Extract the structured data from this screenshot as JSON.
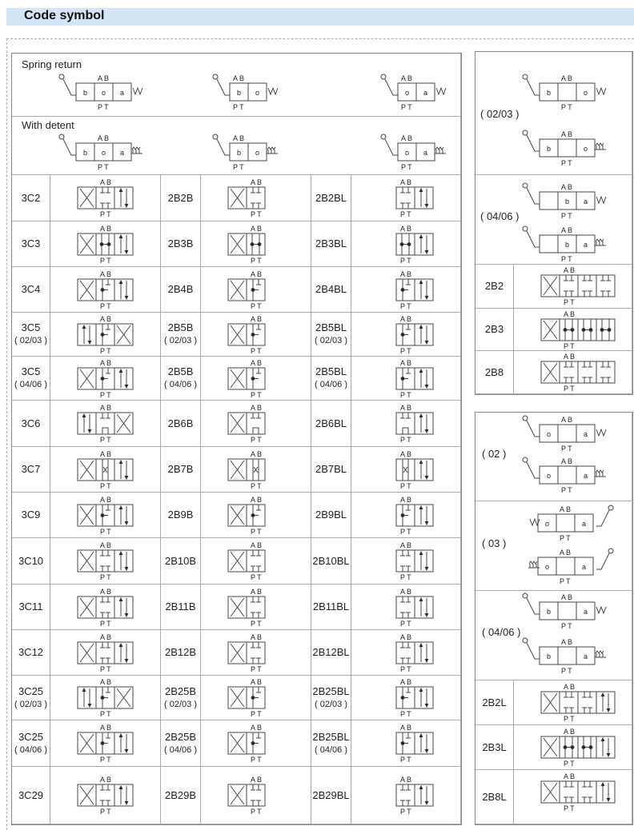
{
  "header": {
    "title": "Code symbol"
  },
  "ports": {
    "top": "A B",
    "bottom": "P T"
  },
  "positions": {
    "b": "b",
    "o": "o",
    "a": "a"
  },
  "operator": {
    "spring_return": "Spring return",
    "with_detent": "With detent"
  },
  "rows": [
    {
      "c1": "3C2",
      "c2": "2B2B",
      "c3": "2B2BL",
      "center": "blk"
    },
    {
      "c1": "3C3",
      "c2": "2B3B",
      "c3": "2B3BL",
      "center": "dot"
    },
    {
      "c1": "3C4",
      "c2": "2B4B",
      "c3": "2B4BL",
      "center": "half"
    },
    {
      "c1": "3C5",
      "c2": "2B5B",
      "c3": "2B5BL",
      "sub": "( 02/03 )",
      "center": "half",
      "rev": true
    },
    {
      "c1": "3C5",
      "c2": "2B5B",
      "c3": "2B5BL",
      "sub": "( 04/06 )",
      "center": "half"
    },
    {
      "c1": "3C6",
      "c2": "2B6B",
      "c3": "2B6BL",
      "center": "open",
      "rev": true
    },
    {
      "c1": "3C7",
      "c2": "2B7B",
      "c3": "2B7BL",
      "center": "star"
    },
    {
      "c1": "3C9",
      "c2": "2B9B",
      "c3": "2B9BL",
      "center": "half"
    },
    {
      "c1": "3C10",
      "c2": "2B10B",
      "c3": "2B10BL",
      "center": "blk"
    },
    {
      "c1": "3C11",
      "c2": "2B11B",
      "c3": "2B11BL",
      "center": "blk"
    },
    {
      "c1": "3C12",
      "c2": "2B12B",
      "c3": "2B12BL",
      "center": "blk"
    },
    {
      "c1": "3C25",
      "c2": "2B25B",
      "c3": "2B25BL",
      "sub": "( 02/03 )",
      "center": "half",
      "rev": true
    },
    {
      "c1": "3C25",
      "c2": "2B25B",
      "c3": "2B25BL",
      "sub": "( 04/06 )",
      "center": "half"
    },
    {
      "c1": "3C29",
      "c2": "2B29B",
      "c3": "2B29BL",
      "center": "blk"
    }
  ],
  "right_top": {
    "groups": [
      {
        "label": "( 02/03 )"
      },
      {
        "label": "( 04/06 )"
      }
    ],
    "spring_suffix": "a",
    "rows": [
      {
        "label": "2B2",
        "center": "blk"
      },
      {
        "label": "2B3",
        "center": "dot"
      },
      {
        "label": "2B8",
        "center": "blk"
      }
    ]
  },
  "right_bottom": {
    "groups": [
      {
        "label": "( 02 )"
      },
      {
        "label": "( 03 )"
      },
      {
        "label": "( 04/06 )"
      }
    ],
    "rows": [
      {
        "label": "2B2L",
        "center": "blk"
      },
      {
        "label": "2B3L",
        "center": "dot"
      },
      {
        "label": "2B8L",
        "center": "blk"
      }
    ]
  }
}
